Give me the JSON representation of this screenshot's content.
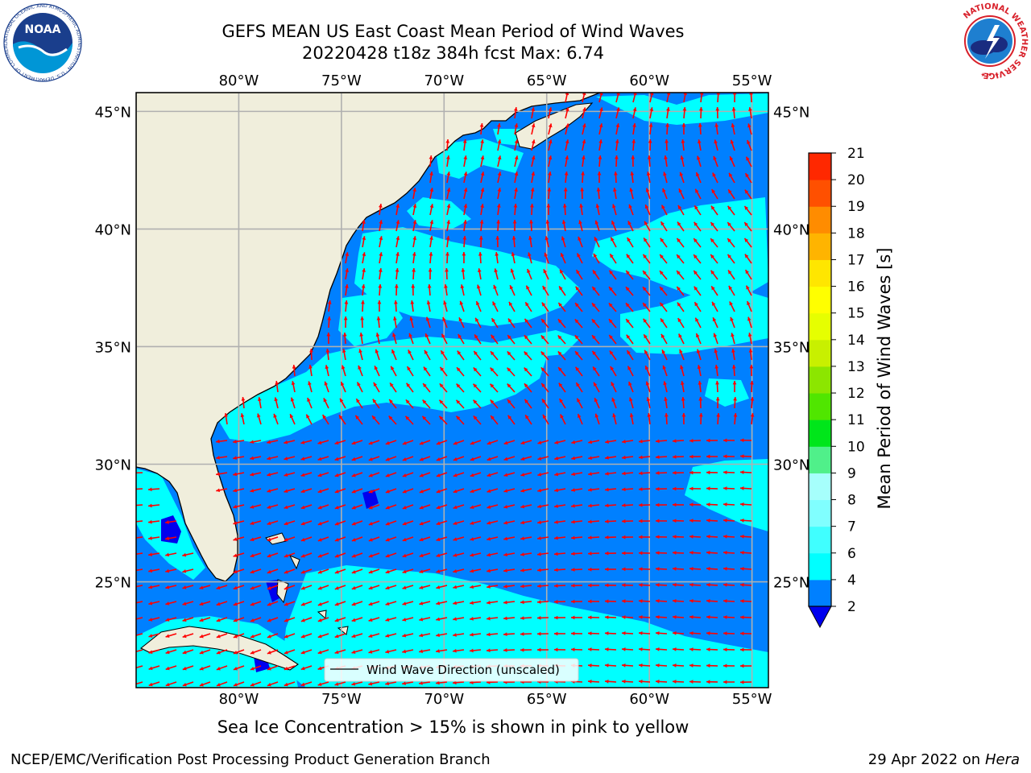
{
  "title": {
    "line1": "GEFS MEAN US East Coast Mean Period of Wind Waves",
    "line2": "20220428 t18z 384h fcst   Max: 6.74"
  },
  "axes": {
    "lon_ticks": [
      "80°W",
      "75°W",
      "70°W",
      "65°W",
      "60°W",
      "55°W"
    ],
    "lon_values": [
      -80,
      -75,
      -70,
      -65,
      -60,
      -55
    ],
    "lat_ticks": [
      "45°N",
      "40°N",
      "35°N",
      "30°N",
      "25°N"
    ],
    "lat_values": [
      45,
      40,
      35,
      30,
      25
    ],
    "lon_range": [
      -85,
      -54.2
    ],
    "lat_range": [
      20.5,
      45.8
    ]
  },
  "colorbar": {
    "label": "Mean Period of Wind Waves [s]",
    "ticks": [
      "2",
      "4",
      "6",
      "7",
      "8",
      "9",
      "10",
      "11",
      "12",
      "13",
      "14",
      "15",
      "16",
      "17",
      "18",
      "19",
      "20",
      "21"
    ],
    "values": [
      2,
      4,
      6,
      7,
      8,
      9,
      10,
      11,
      12,
      13,
      14,
      15,
      16,
      17,
      18,
      19,
      20,
      21
    ],
    "colors": [
      "#0080ff",
      "#00ffff",
      "#40ffff",
      "#80ffff",
      "#a6fffc",
      "#50f08a",
      "#00e61a",
      "#50e600",
      "#8ce600",
      "#c8f000",
      "#e6ff00",
      "#ffff00",
      "#ffe600",
      "#ffb400",
      "#ff8c00",
      "#ff5000",
      "#ff2800"
    ],
    "under_color": "#0000ee"
  },
  "legend": {
    "label": "Wind Wave Direction (unscaled)"
  },
  "caption": "Sea Ice Concentration > 15% is shown in pink to yellow",
  "footer": {
    "left": "NCEP/EMC/Verification Post Processing Product Generation Branch",
    "right_prefix": "29 Apr 2022 on ",
    "right_host": "Hera"
  },
  "logos": {
    "noaa": {
      "text": "NOAA",
      "ring_text": "NATIONAL OCEANIC AND ATMOSPHERIC ADMINISTRATION · U.S. DEPARTMENT OF COMMERCE"
    },
    "nws": {
      "ring_text": "NATIONAL WEATHER SERVICE"
    }
  },
  "colors": {
    "land": "#f0eedc",
    "ocean_low": "#0080ff",
    "ocean_mid": "#00ffff",
    "arrow": "#ff0000",
    "grid": "#b0b0b0"
  }
}
